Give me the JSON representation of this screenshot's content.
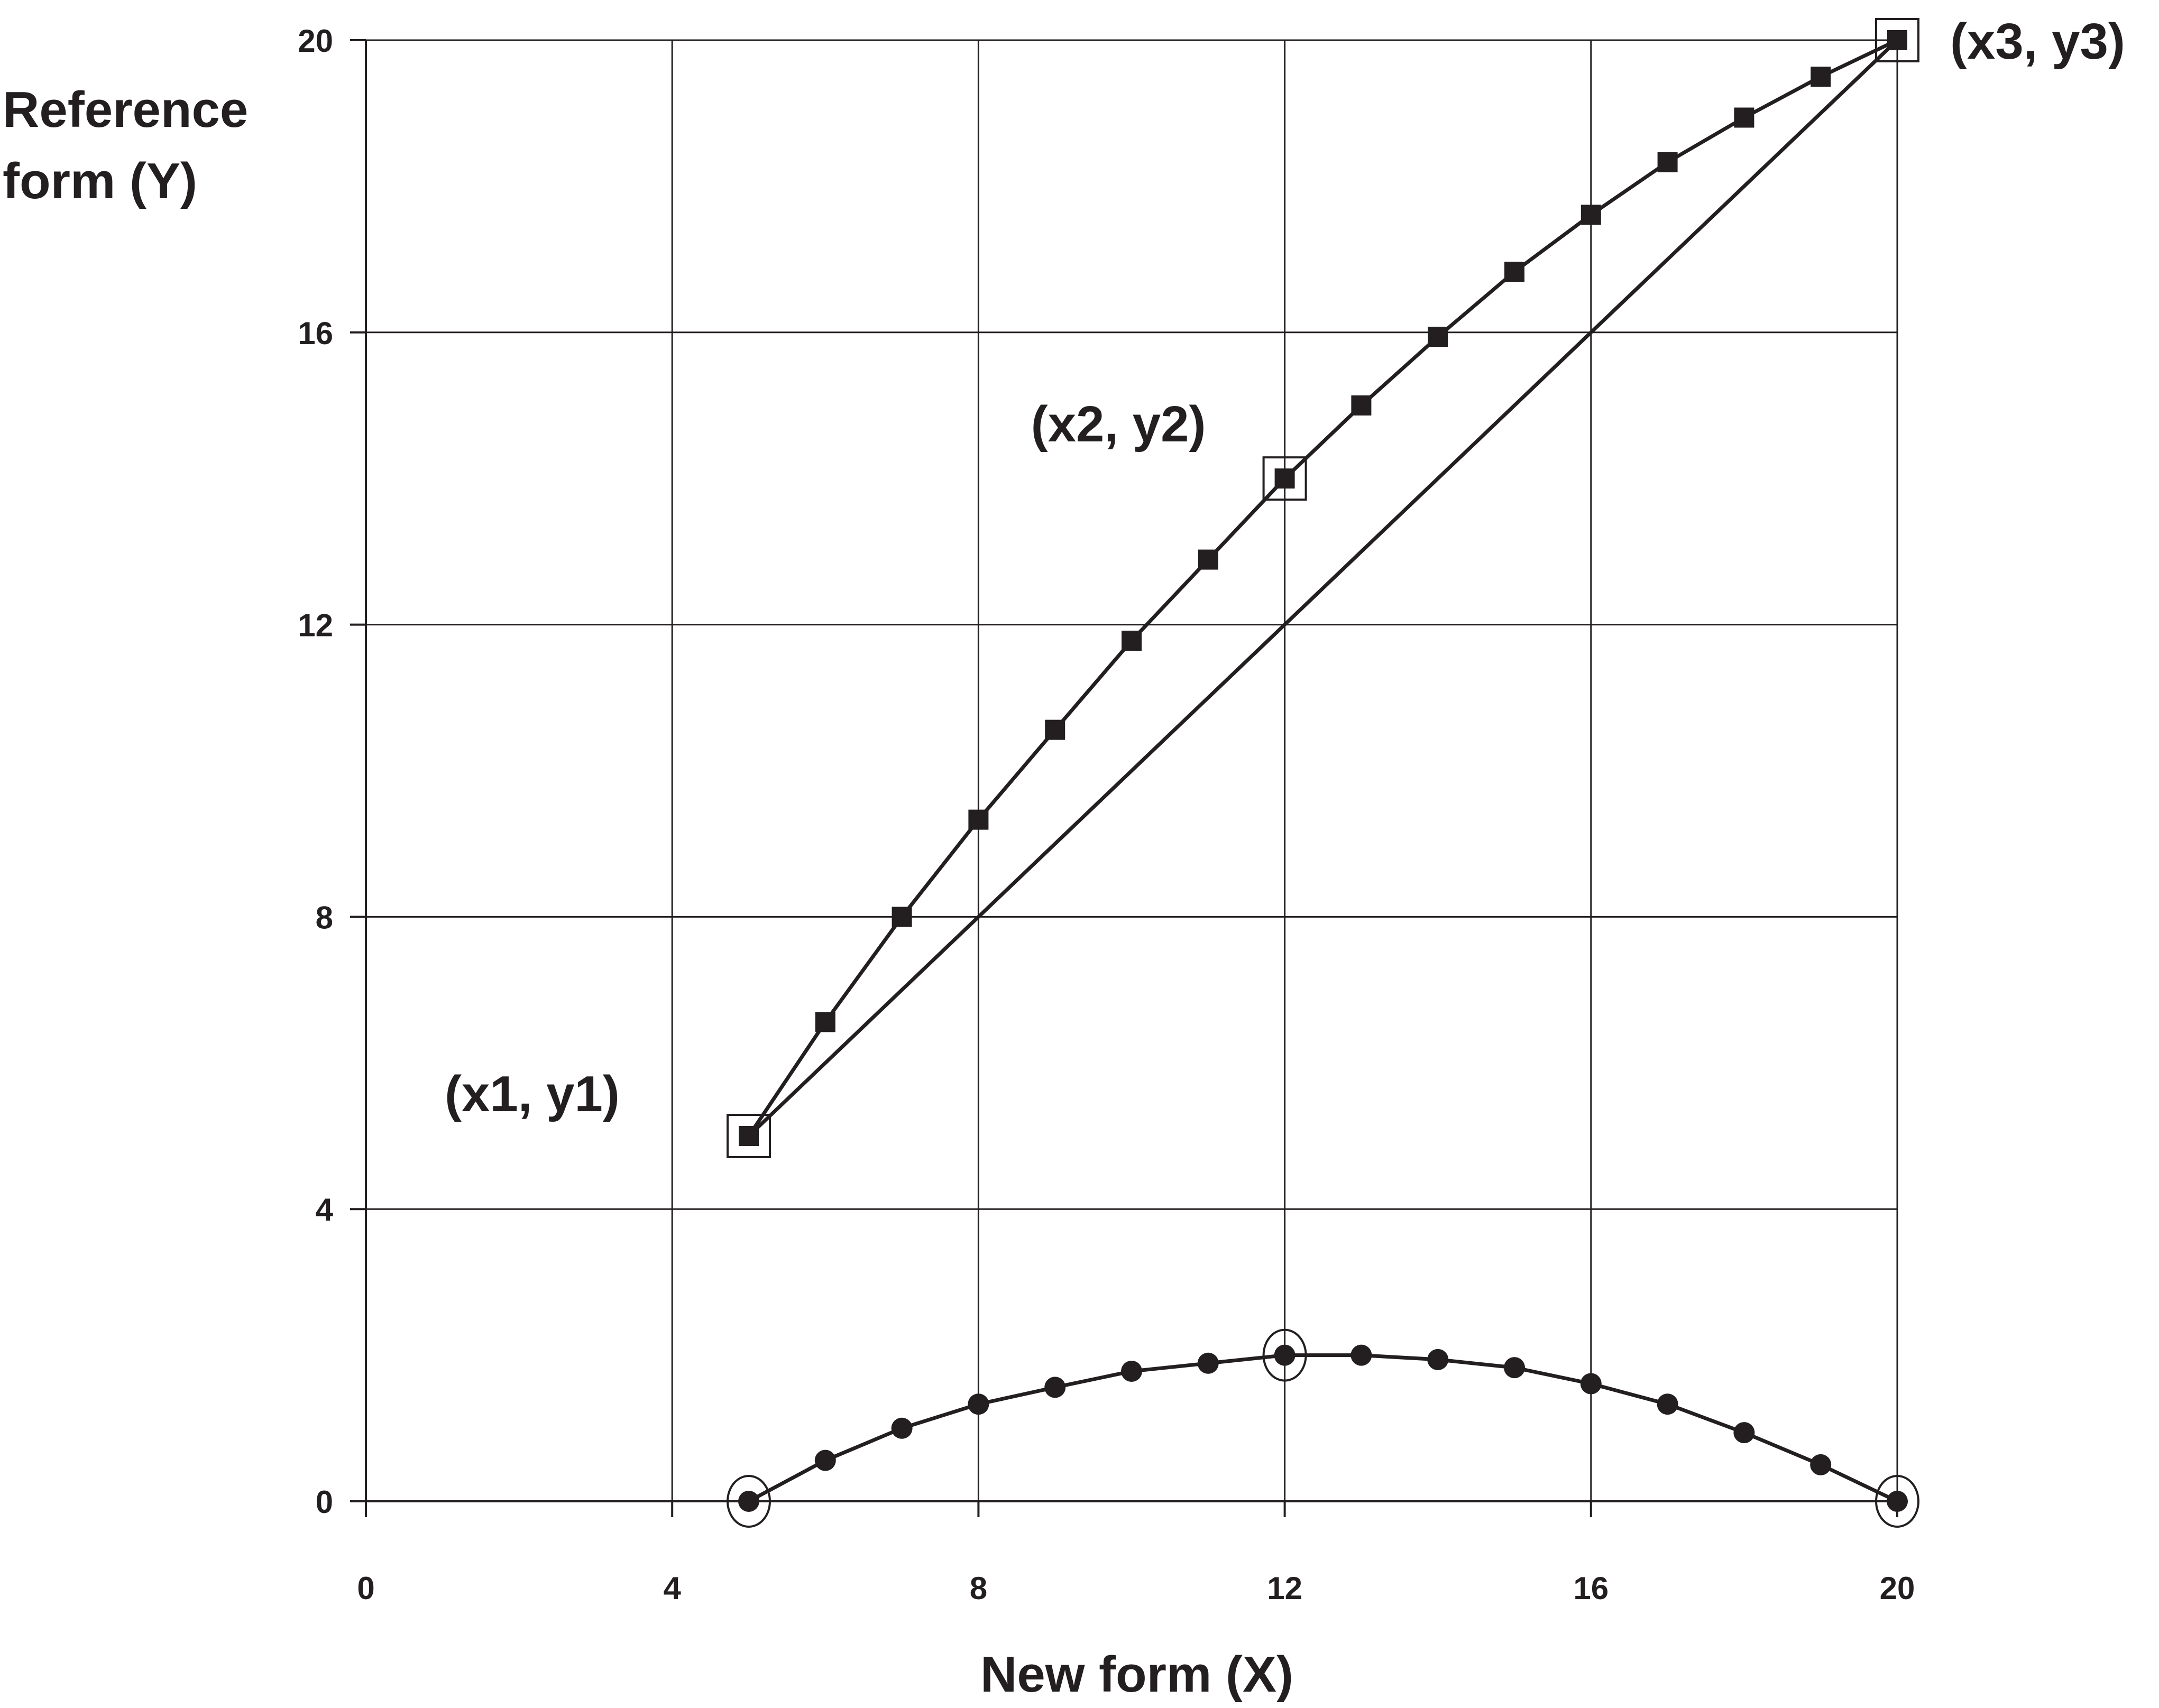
{
  "chart_data": {
    "type": "line",
    "title": "",
    "xlabel": "New form (X)",
    "ylabel_lines": [
      "Reference",
      "form (Y)"
    ],
    "xlim": [
      0,
      20
    ],
    "ylim": [
      0,
      20
    ],
    "x_ticks": [
      0,
      4,
      8,
      12,
      16,
      20
    ],
    "y_ticks": [
      0,
      4,
      8,
      12,
      16,
      20
    ],
    "grid": true,
    "series": [
      {
        "marker": "square",
        "x": [
          5,
          6,
          7,
          8,
          9,
          10,
          11,
          12,
          13,
          14,
          15,
          16,
          17,
          18,
          19,
          20
        ],
        "values": [
          5.0,
          6.56,
          8.0,
          9.33,
          10.56,
          11.78,
          12.89,
          14.0,
          15.0,
          15.94,
          16.83,
          17.61,
          18.33,
          18.94,
          19.5,
          20.0
        ]
      },
      {
        "marker": "none",
        "x": [
          5,
          20
        ],
        "values": [
          5,
          20
        ]
      },
      {
        "marker": "circle",
        "x": [
          5,
          6,
          7,
          8,
          9,
          10,
          11,
          12,
          13,
          14,
          15,
          16,
          17,
          18,
          19,
          20
        ],
        "values": [
          0.0,
          0.56,
          1.0,
          1.33,
          1.56,
          1.78,
          1.89,
          2.0,
          2.0,
          1.94,
          1.83,
          1.61,
          1.33,
          0.94,
          0.5,
          0.0
        ]
      }
    ],
    "highlighted_points": [
      {
        "series": 0,
        "index": 0,
        "label": "(x1, y1)"
      },
      {
        "series": 0,
        "index": 7,
        "label": "(x2, y2)"
      },
      {
        "series": 0,
        "index": 15,
        "label": "(x3, y3)"
      },
      {
        "series": 2,
        "index": 0,
        "label": ""
      },
      {
        "series": 2,
        "index": 7,
        "label": ""
      },
      {
        "series": 2,
        "index": 15,
        "label": ""
      }
    ]
  }
}
